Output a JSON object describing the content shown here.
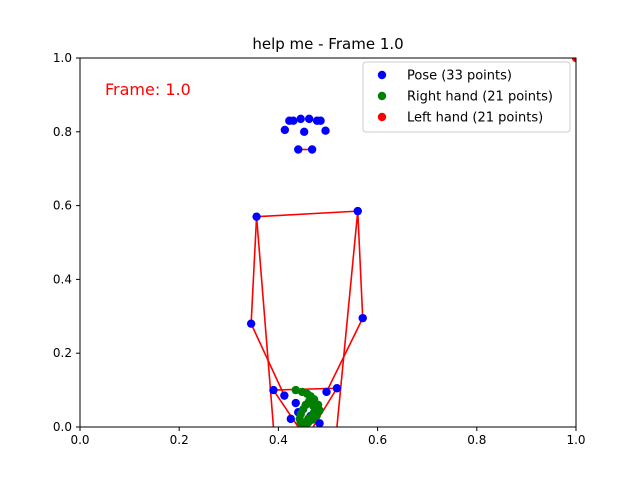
{
  "chart_data": {
    "type": "scatter",
    "title": "help me - Frame 1.0",
    "annotation": "Frame: 1.0",
    "xlabel": "",
    "ylabel": "",
    "xlim": [
      0,
      1
    ],
    "ylim": [
      0,
      1
    ],
    "xticks": [
      "0.0",
      "0.2",
      "0.4",
      "0.6",
      "0.8",
      "1.0"
    ],
    "yticks": [
      "0.0",
      "0.2",
      "0.4",
      "0.6",
      "0.8",
      "1.0"
    ],
    "grid": false,
    "legend_position": "top-right",
    "colors": {
      "pose": "#0000ff",
      "right_hand": "#008000",
      "left_hand": "#ff0000",
      "connection": "#ff0000",
      "hand_connection": "#ffa500",
      "annotation": "#ff0000"
    },
    "series": [
      {
        "name": "Pose (33 points)",
        "color": "#0000ff",
        "points": [
          [
            0.445,
            0.835
          ],
          [
            0.43,
            0.83
          ],
          [
            0.422,
            0.83
          ],
          [
            0.413,
            0.805
          ],
          [
            0.462,
            0.835
          ],
          [
            0.478,
            0.83
          ],
          [
            0.485,
            0.83
          ],
          [
            0.495,
            0.803
          ],
          [
            0.44,
            0.752
          ],
          [
            0.468,
            0.752
          ],
          [
            0.452,
            0.8
          ],
          [
            0.356,
            0.57
          ],
          [
            0.56,
            0.585
          ],
          [
            0.345,
            0.28
          ],
          [
            0.57,
            0.295
          ],
          [
            0.39,
            0.1
          ],
          [
            0.518,
            0.105
          ],
          [
            0.412,
            0.085
          ],
          [
            0.497,
            0.095
          ],
          [
            0.435,
            0.065
          ],
          [
            0.475,
            0.055
          ],
          [
            0.425,
            0.022
          ],
          [
            0.483,
            0.01
          ],
          [
            0.44,
            0.04
          ],
          [
            0.465,
            0.03
          ]
        ]
      },
      {
        "name": "Right hand (21 points)",
        "color": "#008000",
        "points": [
          [
            0.435,
            0.1
          ],
          [
            0.448,
            0.095
          ],
          [
            0.458,
            0.09
          ],
          [
            0.465,
            0.083
          ],
          [
            0.472,
            0.075
          ],
          [
            0.48,
            0.06
          ],
          [
            0.483,
            0.045
          ],
          [
            0.477,
            0.03
          ],
          [
            0.468,
            0.02
          ],
          [
            0.46,
            0.012
          ],
          [
            0.452,
            0.008
          ],
          [
            0.445,
            0.012
          ],
          [
            0.443,
            0.022
          ],
          [
            0.445,
            0.035
          ],
          [
            0.45,
            0.048
          ],
          [
            0.455,
            0.06
          ],
          [
            0.462,
            0.07
          ],
          [
            0.47,
            0.058
          ],
          [
            0.472,
            0.04
          ],
          [
            0.468,
            0.03
          ],
          [
            0.46,
            0.022
          ]
        ]
      },
      {
        "name": "Left hand (21 points)",
        "color": "#ff0000",
        "points": [
          [
            1.0,
            1.0
          ]
        ]
      }
    ],
    "pose_lines": [
      [
        [
          0.43,
          0.83
        ],
        [
          0.445,
          0.835
        ]
      ],
      [
        [
          0.462,
          0.835
        ],
        [
          0.485,
          0.83
        ]
      ],
      [
        [
          0.44,
          0.752
        ],
        [
          0.468,
          0.752
        ]
      ],
      [
        [
          0.356,
          0.57
        ],
        [
          0.56,
          0.585
        ]
      ],
      [
        [
          0.356,
          0.57
        ],
        [
          0.345,
          0.28
        ]
      ],
      [
        [
          0.345,
          0.28
        ],
        [
          0.412,
          0.085
        ]
      ],
      [
        [
          0.56,
          0.585
        ],
        [
          0.57,
          0.295
        ]
      ],
      [
        [
          0.57,
          0.295
        ],
        [
          0.497,
          0.095
        ]
      ],
      [
        [
          0.356,
          0.57
        ],
        [
          0.39,
          0.0
        ]
      ],
      [
        [
          0.56,
          0.585
        ],
        [
          0.518,
          0.0
        ]
      ],
      [
        [
          0.39,
          0.1
        ],
        [
          0.518,
          0.105
        ]
      ],
      [
        [
          0.39,
          0.1
        ],
        [
          0.44,
          0.0
        ]
      ],
      [
        [
          0.518,
          0.105
        ],
        [
          0.47,
          0.0
        ]
      ]
    ]
  }
}
